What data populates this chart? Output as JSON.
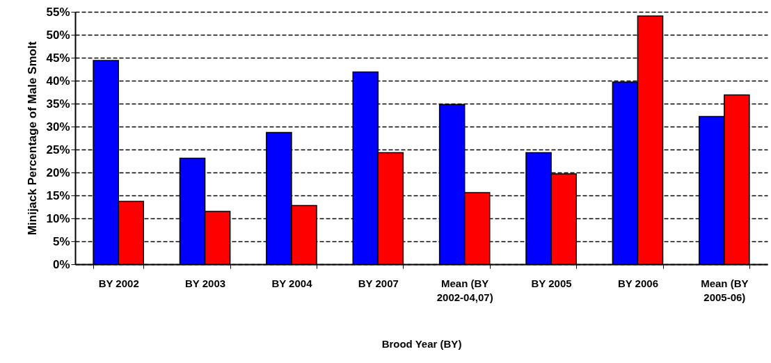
{
  "chart_data": {
    "type": "bar",
    "xlabel": "Brood Year (BY)",
    "ylabel": "Minijack Percentage of Male Smolt",
    "categories": [
      "BY 2002",
      "BY 2003",
      "BY 2004",
      "BY 2007",
      "Mean (BY 2002-04,07)",
      "BY 2005",
      "BY 2006",
      "Mean (BY 2005-06)"
    ],
    "series": [
      {
        "color": "#0000ff",
        "values": [
          44.4,
          23.1,
          28.7,
          41.9,
          34.8,
          24.3,
          39.7,
          32.2
        ]
      },
      {
        "color": "#ff0000",
        "values": [
          13.7,
          11.5,
          12.8,
          24.3,
          15.6,
          19.7,
          54.1,
          36.9
        ]
      }
    ],
    "ylim": [
      0,
      55
    ],
    "yticks": [
      {
        "value": 0,
        "label": "0%"
      },
      {
        "value": 5,
        "label": "5%"
      },
      {
        "value": 10,
        "label": "10%"
      },
      {
        "value": 15,
        "label": "15%"
      },
      {
        "value": 20,
        "label": "20%"
      },
      {
        "value": 25,
        "label": "25%"
      },
      {
        "value": 30,
        "label": "30%"
      },
      {
        "value": 35,
        "label": "35%"
      },
      {
        "value": 40,
        "label": "40%"
      },
      {
        "value": 45,
        "label": "45%"
      },
      {
        "value": 50,
        "label": "50%"
      },
      {
        "value": 55,
        "label": "55%"
      }
    ],
    "grid": "y"
  }
}
